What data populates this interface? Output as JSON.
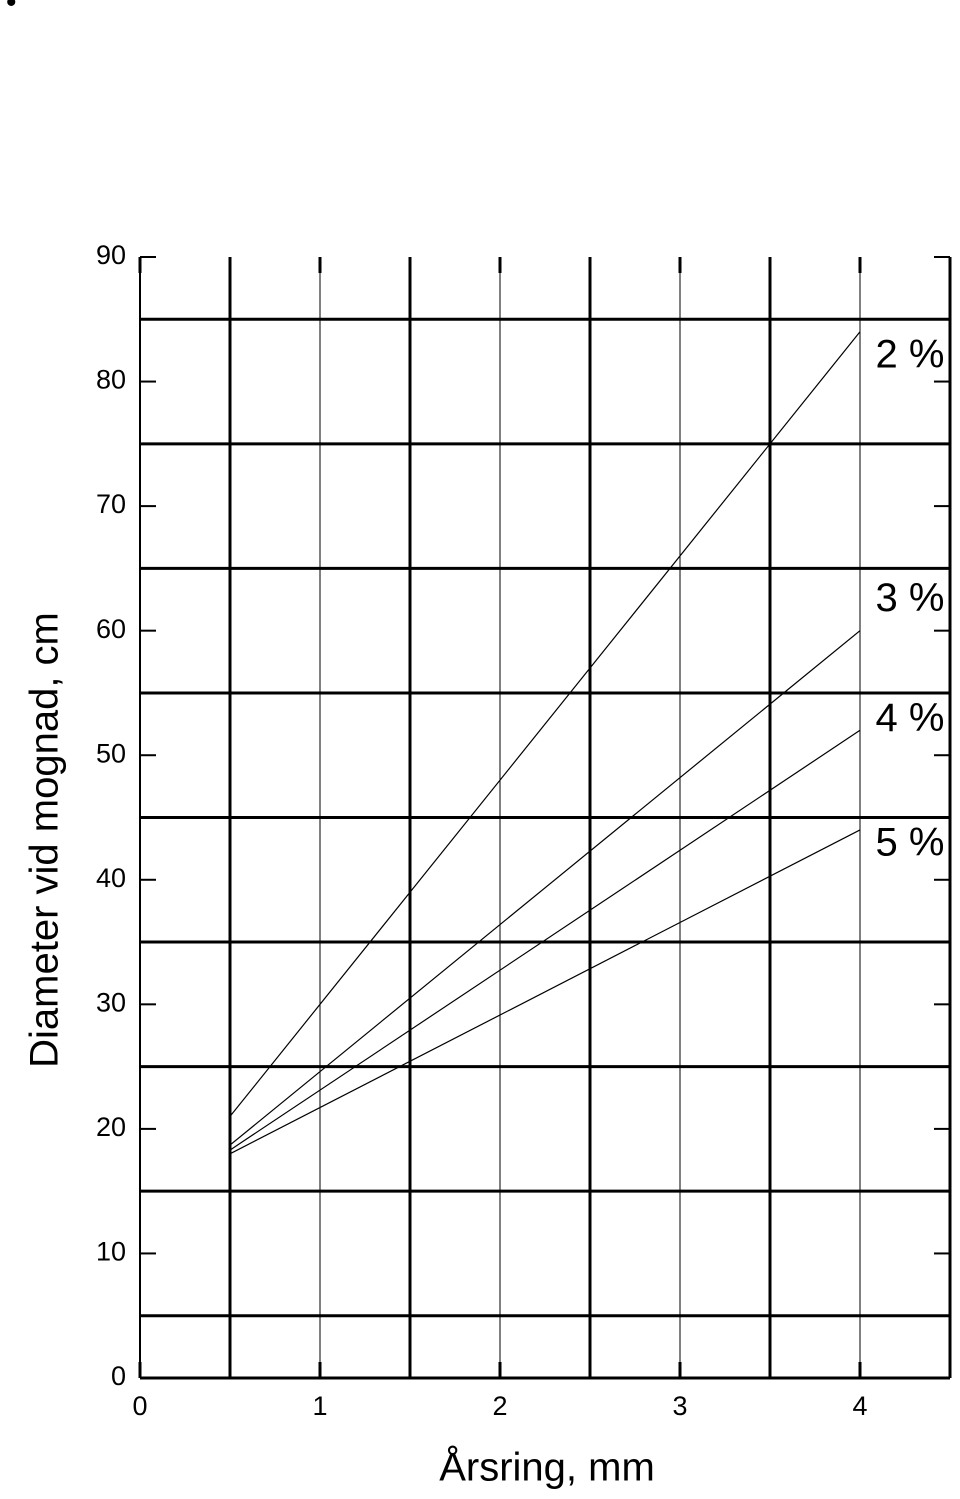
{
  "bullet": "•",
  "chart_data": {
    "type": "line",
    "x_label": "Årsring, mm",
    "y_label": "Diameter vid mognad, cm",
    "x": [
      0.5,
      4
    ],
    "series": [
      {
        "name": "2 %",
        "color": "#000000",
        "values": [
          21,
          84
        ]
      },
      {
        "name": "3 %",
        "color": "#000000",
        "values": [
          18.7,
          60
        ]
      },
      {
        "name": "4 %",
        "color": "#000000",
        "values": [
          18.3,
          52
        ]
      },
      {
        "name": "5 %",
        "color": "#000000",
        "values": [
          18,
          44
        ]
      }
    ],
    "xlim": [
      0,
      4.5
    ],
    "xticks": [
      0,
      1,
      2,
      3,
      4
    ],
    "ylim": [
      0,
      90
    ],
    "yticks": [
      0,
      10,
      20,
      30,
      40,
      50,
      60,
      70,
      80,
      90
    ],
    "x_minor_grid": [
      0.5,
      1.5,
      2.5,
      3.5,
      4.5
    ],
    "y_minor_grid": [
      5,
      15,
      25,
      35,
      45,
      55,
      65,
      75,
      85
    ],
    "grid": true
  }
}
